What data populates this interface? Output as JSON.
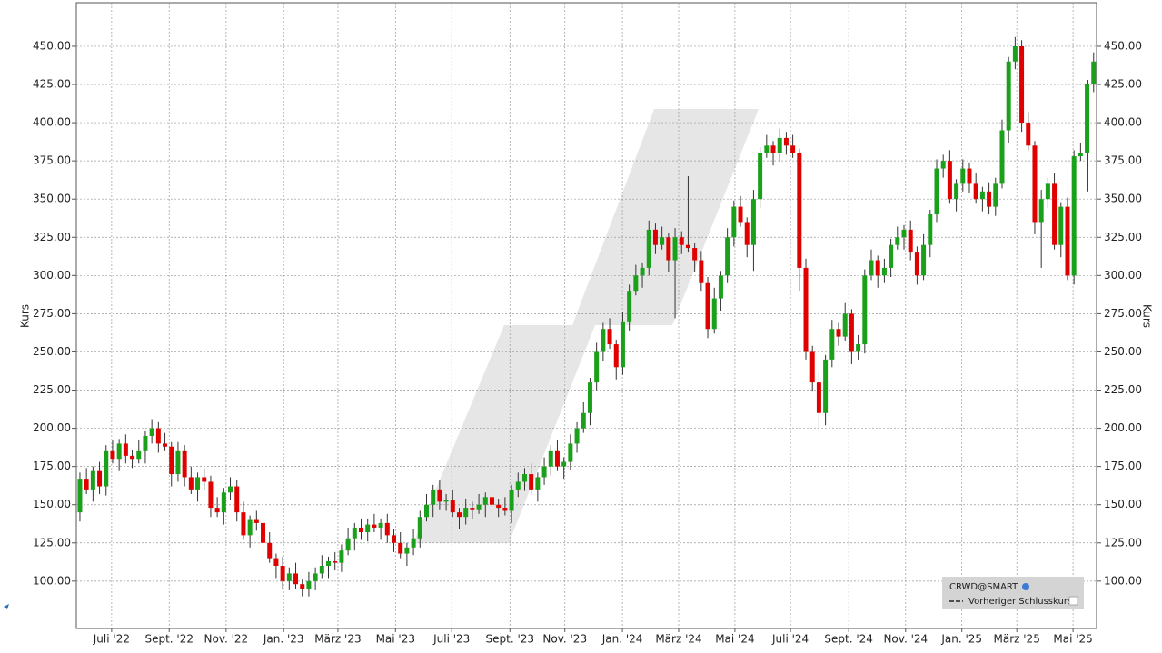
{
  "chart_data": {
    "type": "candlestick",
    "y_label": "Kurs",
    "legend_title": "CRWD@SMART",
    "legend_entry": "Vorheriger Schlusskurs",
    "up_color": "#1aa01a",
    "down_color": "#e00000",
    "grid": true,
    "xlim": [
      0,
      156
    ],
    "xticks": [
      {
        "value": 5.4,
        "label": "Juli '22"
      },
      {
        "value": 14.2,
        "label": "Sept. '22"
      },
      {
        "value": 22.9,
        "label": "Nov. '22"
      },
      {
        "value": 31.7,
        "label": "Jan. '23"
      },
      {
        "value": 40,
        "label": "März '23"
      },
      {
        "value": 48.8,
        "label": "Mai '23"
      },
      {
        "value": 57.4,
        "label": "Juli '23"
      },
      {
        "value": 66.3,
        "label": "Sept. '23"
      },
      {
        "value": 74.7,
        "label": "Nov. '23"
      },
      {
        "value": 83.5,
        "label": "Jan. '24"
      },
      {
        "value": 92.1,
        "label": "März '24"
      },
      {
        "value": 100.7,
        "label": "Mai '24"
      },
      {
        "value": 109.2,
        "label": "Juli '24"
      },
      {
        "value": 118.1,
        "label": "Sept. '24"
      },
      {
        "value": 126.8,
        "label": "Nov. '24"
      },
      {
        "value": 135.4,
        "label": "Jan. '25"
      },
      {
        "value": 143.8,
        "label": "März '25"
      },
      {
        "value": 152.4,
        "label": "Mai '25"
      }
    ],
    "ylim": [
      69,
      478.5
    ],
    "yticks": [
      {
        "value": 100,
        "label": "100.00"
      },
      {
        "value": 125,
        "label": "125.00"
      },
      {
        "value": 150,
        "label": "150.00"
      },
      {
        "value": 175,
        "label": "175.00"
      },
      {
        "value": 200,
        "label": "200.00"
      },
      {
        "value": 225,
        "label": "225.00"
      },
      {
        "value": 250,
        "label": "250.00"
      },
      {
        "value": 275,
        "label": "275.00"
      },
      {
        "value": 300,
        "label": "300.00"
      },
      {
        "value": 325,
        "label": "325.00"
      },
      {
        "value": 350,
        "label": "350.00"
      },
      {
        "value": 375,
        "label": "375.00"
      },
      {
        "value": 400,
        "label": "400.00"
      },
      {
        "value": 425,
        "label": "425.00"
      },
      {
        "value": 450,
        "label": "450.00"
      }
    ],
    "ohlc": [
      [
        145,
        171,
        139,
        167
      ],
      [
        167,
        174,
        157,
        160
      ],
      [
        160,
        175,
        152,
        172
      ],
      [
        172,
        178,
        157,
        162
      ],
      [
        162,
        189,
        156,
        185
      ],
      [
        185,
        192,
        177,
        180
      ],
      [
        180,
        193,
        172,
        190
      ],
      [
        190,
        196,
        177,
        182
      ],
      [
        182,
        186,
        174,
        180
      ],
      [
        180,
        192,
        177,
        185
      ],
      [
        185,
        198,
        177,
        195
      ],
      [
        195,
        206,
        190,
        200
      ],
      [
        200,
        204,
        184,
        190
      ],
      [
        190,
        197,
        185,
        188
      ],
      [
        188,
        191,
        162,
        170
      ],
      [
        170,
        191,
        165,
        185
      ],
      [
        185,
        189,
        162,
        168
      ],
      [
        168,
        175,
        157,
        160
      ],
      [
        160,
        171,
        152,
        168
      ],
      [
        168,
        174,
        160,
        165
      ],
      [
        165,
        169,
        142,
        148
      ],
      [
        148,
        155,
        142,
        145
      ],
      [
        145,
        161,
        137,
        158
      ],
      [
        158,
        168,
        153,
        162
      ],
      [
        162,
        166,
        139,
        145
      ],
      [
        145,
        152,
        127,
        130
      ],
      [
        130,
        143,
        122,
        140
      ],
      [
        140,
        146,
        133,
        138
      ],
      [
        138,
        142,
        119,
        125
      ],
      [
        125,
        132,
        112,
        115
      ],
      [
        115,
        118,
        102,
        110
      ],
      [
        110,
        116,
        95,
        100
      ],
      [
        100,
        109,
        94,
        105
      ],
      [
        105,
        112,
        95,
        98
      ],
      [
        98,
        101,
        90,
        95
      ],
      [
        95,
        106,
        90,
        100
      ],
      [
        100,
        109,
        94,
        105
      ],
      [
        105,
        117,
        102,
        110
      ],
      [
        110,
        116,
        102,
        113
      ],
      [
        113,
        119,
        107,
        112
      ],
      [
        112,
        124,
        106,
        120
      ],
      [
        120,
        135,
        117,
        128
      ],
      [
        128,
        138,
        120,
        135
      ],
      [
        135,
        141,
        127,
        132
      ],
      [
        132,
        141,
        126,
        137
      ],
      [
        137,
        144,
        132,
        135
      ],
      [
        135,
        141,
        127,
        138
      ],
      [
        138,
        144,
        125,
        130
      ],
      [
        130,
        134,
        119,
        125
      ],
      [
        125,
        132,
        115,
        118
      ],
      [
        118,
        125,
        110,
        122
      ],
      [
        122,
        134,
        117,
        128
      ],
      [
        128,
        146,
        122,
        142
      ],
      [
        142,
        157,
        139,
        150
      ],
      [
        150,
        163,
        142,
        160
      ],
      [
        160,
        166,
        147,
        152
      ],
      [
        152,
        157,
        146,
        153
      ],
      [
        153,
        160,
        142,
        145
      ],
      [
        145,
        148,
        134,
        142
      ],
      [
        142,
        154,
        137,
        148
      ],
      [
        148,
        152,
        141,
        147
      ],
      [
        147,
        157,
        144,
        150
      ],
      [
        150,
        158,
        142,
        155
      ],
      [
        155,
        161,
        145,
        150
      ],
      [
        150,
        154,
        142,
        148
      ],
      [
        148,
        155,
        143,
        146
      ],
      [
        146,
        163,
        138,
        160
      ],
      [
        160,
        171,
        155,
        165
      ],
      [
        165,
        174,
        159,
        170
      ],
      [
        170,
        177,
        157,
        160
      ],
      [
        160,
        171,
        152,
        168
      ],
      [
        168,
        181,
        163,
        175
      ],
      [
        175,
        189,
        169,
        185
      ],
      [
        185,
        192,
        172,
        175
      ],
      [
        175,
        181,
        167,
        178
      ],
      [
        178,
        196,
        173,
        190
      ],
      [
        190,
        204,
        184,
        200
      ],
      [
        200,
        217,
        197,
        210
      ],
      [
        210,
        233,
        202,
        230
      ],
      [
        230,
        256,
        225,
        250
      ],
      [
        250,
        269,
        244,
        265
      ],
      [
        265,
        272,
        252,
        255
      ],
      [
        255,
        258,
        232,
        240
      ],
      [
        240,
        276,
        235,
        270
      ],
      [
        270,
        294,
        264,
        290
      ],
      [
        290,
        307,
        287,
        300
      ],
      [
        300,
        308,
        292,
        305
      ],
      [
        305,
        336,
        300,
        330
      ],
      [
        330,
        334,
        314,
        320
      ],
      [
        320,
        332,
        317,
        325
      ],
      [
        325,
        328,
        302,
        310
      ],
      [
        310,
        331,
        272,
        325
      ],
      [
        325,
        329,
        314,
        320
      ],
      [
        320,
        365,
        315,
        318
      ],
      [
        318,
        321,
        302,
        310
      ],
      [
        310,
        316,
        290,
        295
      ],
      [
        295,
        299,
        259,
        265
      ],
      [
        265,
        292,
        262,
        285
      ],
      [
        285,
        303,
        277,
        300
      ],
      [
        300,
        331,
        295,
        325
      ],
      [
        325,
        349,
        319,
        345
      ],
      [
        345,
        352,
        332,
        335
      ],
      [
        335,
        338,
        312,
        320
      ],
      [
        320,
        356,
        303,
        350
      ],
      [
        350,
        384,
        344,
        380
      ],
      [
        380,
        392,
        377,
        385
      ],
      [
        385,
        388,
        372,
        380
      ],
      [
        380,
        396,
        375,
        390
      ],
      [
        390,
        394,
        379,
        385
      ],
      [
        385,
        392,
        377,
        380
      ],
      [
        380,
        383,
        290,
        305
      ],
      [
        305,
        311,
        245,
        250
      ],
      [
        250,
        254,
        224,
        230
      ],
      [
        230,
        237,
        200,
        210
      ],
      [
        210,
        248,
        202,
        245
      ],
      [
        245,
        271,
        240,
        265
      ],
      [
        265,
        269,
        254,
        260
      ],
      [
        260,
        282,
        257,
        275
      ],
      [
        275,
        278,
        242,
        250
      ],
      [
        250,
        261,
        245,
        255
      ],
      [
        255,
        304,
        249,
        300
      ],
      [
        300,
        317,
        297,
        310
      ],
      [
        310,
        313,
        292,
        300
      ],
      [
        300,
        311,
        295,
        305
      ],
      [
        305,
        324,
        299,
        320
      ],
      [
        320,
        332,
        317,
        325
      ],
      [
        325,
        333,
        317,
        330
      ],
      [
        330,
        336,
        310,
        315
      ],
      [
        315,
        319,
        294,
        300
      ],
      [
        300,
        327,
        297,
        320
      ],
      [
        320,
        343,
        312,
        340
      ],
      [
        340,
        376,
        335,
        370
      ],
      [
        370,
        379,
        364,
        375
      ],
      [
        375,
        382,
        347,
        350
      ],
      [
        350,
        363,
        342,
        360
      ],
      [
        360,
        376,
        355,
        370
      ],
      [
        370,
        374,
        354,
        360
      ],
      [
        360,
        367,
        347,
        350
      ],
      [
        350,
        358,
        342,
        355
      ],
      [
        355,
        361,
        340,
        345
      ],
      [
        345,
        364,
        339,
        360
      ],
      [
        360,
        402,
        357,
        395
      ],
      [
        395,
        443,
        387,
        440
      ],
      [
        440,
        456,
        435,
        450
      ],
      [
        450,
        454,
        394,
        400
      ],
      [
        400,
        407,
        382,
        385
      ],
      [
        385,
        388,
        327,
        335
      ],
      [
        335,
        356,
        305,
        350
      ],
      [
        350,
        364,
        344,
        360
      ],
      [
        360,
        367,
        317,
        320
      ],
      [
        320,
        348,
        312,
        345
      ],
      [
        345,
        351,
        297,
        300
      ],
      [
        300,
        382,
        294,
        378
      ],
      [
        378,
        387,
        375,
        380
      ],
      [
        380,
        428,
        355,
        425
      ],
      [
        425,
        446,
        420,
        440
      ]
    ]
  }
}
